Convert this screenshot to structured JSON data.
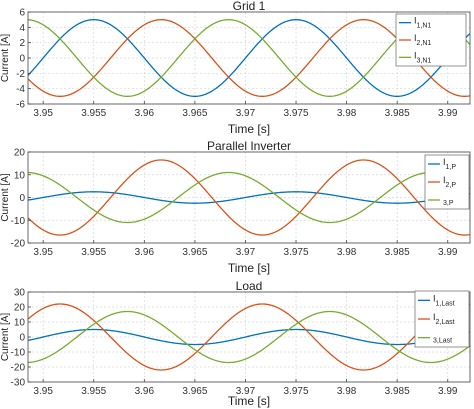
{
  "chart_data": [
    {
      "type": "line",
      "title": "Grid 1",
      "xlabel": "Time [s]",
      "ylabel": "Current [A]",
      "xlim": [
        3.9485,
        3.9922
      ],
      "ylim": [
        -6,
        6
      ],
      "xticks": [
        "3.95",
        "3.955",
        "3.96",
        "3.965",
        "3.97",
        "3.975",
        "3.98",
        "3.985",
        "3.99"
      ],
      "xtick_values": [
        3.95,
        3.955,
        3.96,
        3.965,
        3.97,
        3.975,
        3.98,
        3.985,
        3.99
      ],
      "yticks": [
        "-6",
        "-4",
        "-2",
        "0",
        "2",
        "4",
        "6"
      ],
      "ytick_values": [
        -6,
        -4,
        -2,
        0,
        2,
        4,
        6
      ],
      "grid": true,
      "legend_position": "top-right",
      "series": [
        {
          "name": "I",
          "subscript": "1,N1",
          "color": "#0072BD",
          "amplitude": 5.0,
          "frequency_hz": 50,
          "peak_time": 3.955
        },
        {
          "name": "I",
          "subscript": "2,N1",
          "color": "#D95319",
          "amplitude": 5.0,
          "frequency_hz": 50,
          "peak_time": 3.96167
        },
        {
          "name": "I",
          "subscript": "3,N1",
          "color": "#77AC30",
          "amplitude": 5.0,
          "frequency_hz": 50,
          "peak_time": 3.96833
        }
      ]
    },
    {
      "type": "line",
      "title": "Parallel Inverter",
      "xlabel": "Time [s]",
      "ylabel": "Current [A]",
      "xlim": [
        3.9485,
        3.9922
      ],
      "ylim": [
        -20,
        20
      ],
      "xticks": [
        "3.95",
        "3.955",
        "3.96",
        "3.965",
        "3.97",
        "3.975",
        "3.98",
        "3.985",
        "3.99"
      ],
      "xtick_values": [
        3.95,
        3.955,
        3.96,
        3.965,
        3.97,
        3.975,
        3.98,
        3.985,
        3.99
      ],
      "yticks": [
        "-20",
        "-10",
        "0",
        "10",
        "20"
      ],
      "ytick_values": [
        -20,
        -10,
        0,
        10,
        20
      ],
      "grid": true,
      "legend_position": "right",
      "series": [
        {
          "name": "I",
          "subscript": "1,P",
          "color": "#0072BD",
          "amplitude": 2.5,
          "frequency_hz": 50,
          "peak_time": 3.955
        },
        {
          "name": "I",
          "subscript": "2,P",
          "color": "#D95319",
          "amplitude": 16.5,
          "frequency_hz": 50,
          "peak_time": 3.96167
        },
        {
          "name": "",
          "subscript": "3,P",
          "color": "#77AC30",
          "amplitude": 11.0,
          "frequency_hz": 50,
          "peak_time": 3.96833
        }
      ]
    },
    {
      "type": "line",
      "title": "Load",
      "xlabel": "Time [s]",
      "ylabel": "Current [A]",
      "xlim": [
        3.9485,
        3.9922
      ],
      "ylim": [
        -30,
        30
      ],
      "xticks": [
        "3.95",
        "3.955",
        "3.96",
        "3.965",
        "3.97",
        "3.975",
        "3.98",
        "3.985",
        "3.99"
      ],
      "xtick_values": [
        3.95,
        3.955,
        3.96,
        3.965,
        3.97,
        3.975,
        3.98,
        3.985,
        3.99
      ],
      "yticks": [
        "-30",
        "-20",
        "-10",
        "0",
        "10",
        "20",
        "30"
      ],
      "ytick_values": [
        -30,
        -20,
        -10,
        0,
        10,
        20,
        30
      ],
      "grid": true,
      "legend_position": "right",
      "series": [
        {
          "name": "I",
          "subscript": "1,Last",
          "color": "#0072BD",
          "amplitude": 5.0,
          "frequency_hz": 50,
          "peak_time": 3.955
        },
        {
          "name": "I",
          "subscript": "2,Last",
          "color": "#D95319",
          "amplitude": 22.0,
          "frequency_hz": 50,
          "peak_time": 3.95167
        },
        {
          "name": "",
          "subscript": "3,Last",
          "color": "#77AC30",
          "amplitude": 17.0,
          "frequency_hz": 50,
          "peak_time": 3.95833
        }
      ]
    }
  ]
}
